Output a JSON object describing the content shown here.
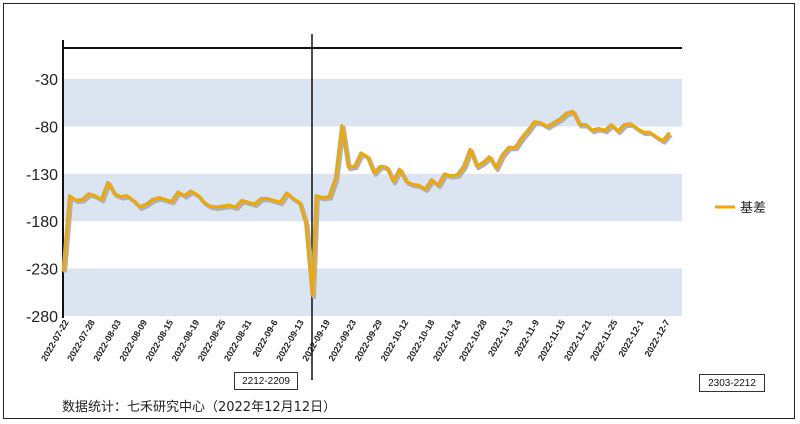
{
  "chart_data": {
    "type": "line",
    "ylim": [
      -280,
      -30
    ],
    "yticks": [
      -30,
      -80,
      -130,
      -180,
      -230,
      -280
    ],
    "bands": [
      [
        -80,
        -30
      ],
      [
        -180,
        -130
      ],
      [
        -280,
        -230
      ]
    ],
    "xtick_labels": [
      "2022-07-22",
      "2022-07-28",
      "2022-08-03",
      "2022-08-09",
      "2022-08-15",
      "2022-08-19",
      "2022-08-25",
      "2022-08-31",
      "2022-09-6",
      "2022-09-13",
      "2022-09-19",
      "2022-09-23",
      "2022-09-29",
      "2022-10-12",
      "2022-10-18",
      "2022-10-24",
      "2022-10-28",
      "2022-11-3",
      "2022-11-9",
      "2022-11-15",
      "2022-11-21",
      "2022-11-25",
      "2022-12-1",
      "2022-12-7"
    ],
    "series": [
      {
        "name": "基差",
        "color": "#f0a800",
        "segments": [
          {
            "label": "2212-2209",
            "values": [
              -232,
              -153,
              -158,
              -157,
              -151,
              -153,
              -157,
              -139,
              -151,
              -154,
              -153,
              -158,
              -165,
              -162,
              -157,
              -155,
              -157,
              -159,
              -149,
              -153,
              -148,
              -152,
              -160,
              -164,
              -165,
              -164,
              -163,
              -165,
              -158,
              -160,
              -162,
              -156,
              -156,
              -158,
              -160,
              -150,
              -156,
              -160,
              -182,
              -258
            ]
          },
          {
            "label": "2303-2212",
            "values": [
              -153,
              -155,
              -154,
              -135,
              -79,
              -123,
              -122,
              -108,
              -112,
              -129,
              -122,
              -123,
              -138,
              -125,
              -138,
              -141,
              -142,
              -146,
              -136,
              -142,
              -130,
              -132,
              -131,
              -122,
              -104,
              -122,
              -118,
              -112,
              -124,
              -110,
              -102,
              -102,
              -92,
              -84,
              -75,
              -76,
              -80,
              -76,
              -72,
              -66,
              -64,
              -78,
              -78,
              -84,
              -82,
              -84,
              -78,
              -85,
              -78,
              -77,
              -82,
              -86,
              -86,
              -91,
              -95,
              -87
            ]
          }
        ]
      }
    ]
  },
  "legend": {
    "label": "基差"
  },
  "markers": {
    "left_label": "2212-2209",
    "right_label": "2303-2212"
  },
  "footnote": "数据统计：七禾研究中心（2022年12月12日）"
}
